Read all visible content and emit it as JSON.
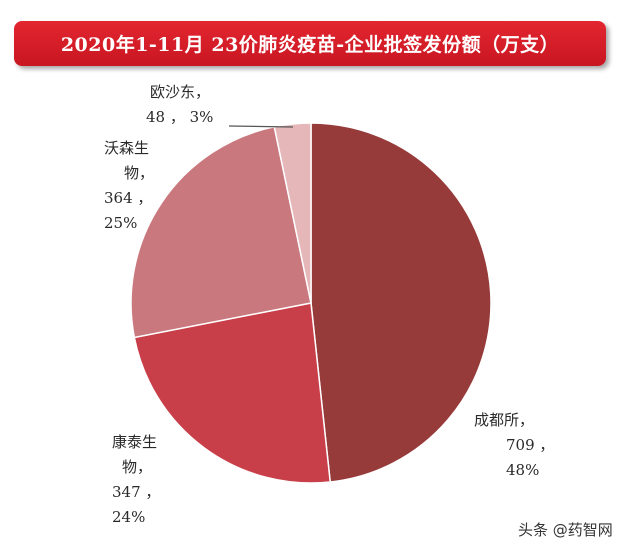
{
  "header": {
    "title": "2020年1-11月 23价肺炎疫苗-企业批签发份额（万支）"
  },
  "chart_data": {
    "type": "pie",
    "title": "2020年1-11月 23价肺炎疫苗-企业批签发份额（万支）",
    "unit": "万支",
    "slices": [
      {
        "name": "成都所",
        "value": 709,
        "percent": "48%",
        "color": "#973a3a"
      },
      {
        "name": "康泰生物",
        "value": 347,
        "percent": "24%",
        "color": "#c83f49"
      },
      {
        "name": "沃森生物",
        "value": 364,
        "percent": "25%",
        "color": "#c9787d"
      },
      {
        "name": "欧沙东",
        "value": 48,
        "percent": "3%",
        "color": "#e5b7b8"
      }
    ]
  },
  "labels": {
    "chengdu": {
      "line1": "成都所，",
      "line2": "709 ，",
      "line3": "48%"
    },
    "kangtai": {
      "line1": "康泰生",
      "line2": "物，",
      "line3": "347 ，",
      "line4": "24%"
    },
    "wosen": {
      "line1": "沃森生",
      "line2": "物，",
      "line3": "364 ，",
      "line4": "25%"
    },
    "msd": {
      "line1": "欧沙东，",
      "line2": "48 ， 3%"
    }
  },
  "watermark": {
    "text": "头条 @药智网"
  }
}
